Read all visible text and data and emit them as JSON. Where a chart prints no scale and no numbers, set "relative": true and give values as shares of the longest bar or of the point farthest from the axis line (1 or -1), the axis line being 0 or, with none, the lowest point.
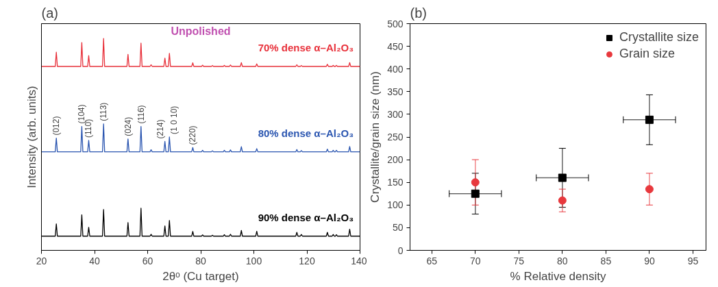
{
  "chart_data": [
    {
      "type": "line",
      "title": "(a)",
      "xlabel": "2θᵒ (Cu target)",
      "ylabel": "Intensity (arb. units)",
      "relative": true,
      "xlim": [
        20,
        140
      ],
      "xticks": [
        20,
        40,
        60,
        80,
        100,
        120,
        140
      ],
      "tick_labels": "x",
      "grid": false,
      "legend": false,
      "x": [
        20,
        25.2,
        25.6,
        26.0,
        34.8,
        35.2,
        35.6,
        37.4,
        37.8,
        38.2,
        43.0,
        43.4,
        43.8,
        52.2,
        52.6,
        53.0,
        57.1,
        57.5,
        57.9,
        60.9,
        61.3,
        61.7,
        66.1,
        66.5,
        66.9,
        67.8,
        68.2,
        68.6,
        76.6,
        77.0,
        77.4,
        80.3,
        80.7,
        81.1,
        84.0,
        84.4,
        84.8,
        88.5,
        88.9,
        89.3,
        90.8,
        91.2,
        91.6,
        94.9,
        95.3,
        95.7,
        100.7,
        101.1,
        101.5,
        115.8,
        116.2,
        116.6,
        117.5,
        117.9,
        118.3,
        127.3,
        127.7,
        128.1,
        129.5,
        129.9,
        130.3,
        130.7,
        131.1,
        131.5,
        135.7,
        136.1,
        136.5,
        140
      ],
      "series": [
        {
          "name": "70% dense α–Al₂O₃",
          "color": "#e8303a",
          "values": [
            0.868,
            0.868,
            0.935,
            0.868,
            0.868,
            0.981,
            0.868,
            0.868,
            0.919,
            0.868,
            0.868,
            1.0,
            0.868,
            0.868,
            0.925,
            0.868,
            0.868,
            0.978,
            0.868,
            0.868,
            0.876,
            0.868,
            0.868,
            0.907,
            0.868,
            0.868,
            0.93,
            0.868,
            0.868,
            0.885,
            0.868,
            0.868,
            0.874,
            0.868,
            0.868,
            0.872,
            0.868,
            0.868,
            0.873,
            0.868,
            0.868,
            0.875,
            0.868,
            0.868,
            0.886,
            0.868,
            0.868,
            0.88,
            0.868,
            0.868,
            0.876,
            0.868,
            0.868,
            0.872,
            0.868,
            0.868,
            0.878,
            0.868,
            0.868,
            0.873,
            0.868,
            0.868,
            0.873,
            0.868,
            0.868,
            0.886,
            0.868,
            0.868
          ]
        },
        {
          "name": "80% dense α–Al₂O₃",
          "color": "#2a55b0",
          "values": [
            0.465,
            0.465,
            0.53,
            0.465,
            0.465,
            0.585,
            0.465,
            0.465,
            0.519,
            0.465,
            0.465,
            0.597,
            0.465,
            0.465,
            0.526,
            0.465,
            0.465,
            0.585,
            0.465,
            0.465,
            0.475,
            0.465,
            0.465,
            0.514,
            0.465,
            0.465,
            0.535,
            0.465,
            0.465,
            0.485,
            0.465,
            0.465,
            0.472,
            0.465,
            0.465,
            0.47,
            0.465,
            0.465,
            0.472,
            0.465,
            0.465,
            0.474,
            0.465,
            0.465,
            0.489,
            0.465,
            0.465,
            0.48,
            0.465,
            0.465,
            0.476,
            0.465,
            0.465,
            0.471,
            0.465,
            0.465,
            0.478,
            0.465,
            0.465,
            0.472,
            0.465,
            0.465,
            0.472,
            0.465,
            0.465,
            0.49,
            0.465,
            0.465
          ]
        },
        {
          "name": "90% dense α–Al₂O₃",
          "color": "#000000",
          "values": [
            0.067,
            0.067,
            0.125,
            0.067,
            0.067,
            0.168,
            0.067,
            0.067,
            0.109,
            0.067,
            0.067,
            0.193,
            0.067,
            0.067,
            0.131,
            0.067,
            0.067,
            0.199,
            0.067,
            0.067,
            0.076,
            0.067,
            0.067,
            0.115,
            0.067,
            0.067,
            0.141,
            0.067,
            0.067,
            0.089,
            0.067,
            0.067,
            0.073,
            0.067,
            0.067,
            0.071,
            0.067,
            0.067,
            0.074,
            0.067,
            0.067,
            0.076,
            0.067,
            0.067,
            0.094,
            0.067,
            0.067,
            0.09,
            0.067,
            0.067,
            0.085,
            0.067,
            0.067,
            0.075,
            0.067,
            0.067,
            0.085,
            0.067,
            0.067,
            0.075,
            0.067,
            0.067,
            0.074,
            0.067,
            0.067,
            0.1,
            0.067,
            0.067
          ]
        }
      ],
      "annotations": [
        "Unpolished",
        {
          "text": "(012)",
          "x": 25.6,
          "y": 0.53
        },
        {
          "text": "(104)",
          "x": 35.2,
          "y": 0.585
        },
        {
          "text": "(110)",
          "x": 37.8,
          "y": 0.519
        },
        {
          "text": "(113)",
          "x": 43.4,
          "y": 0.597
        },
        {
          "text": "(024)",
          "x": 52.6,
          "y": 0.526
        },
        {
          "text": "(116)",
          "x": 57.5,
          "y": 0.585
        },
        {
          "text": "(214)",
          "x": 66.5,
          "y": 0.514
        },
        {
          "text": "(1 0 10)",
          "x": 68.2,
          "y": 0.535
        },
        {
          "text": "(220)",
          "x": 77.0,
          "y": 0.485
        }
      ]
    },
    {
      "type": "scatter",
      "title": "(b)",
      "xlabel": "% Relative density",
      "ylabel": "Crystallite/grain size (nm)",
      "x": [
        70,
        80,
        90
      ],
      "xlim": [
        62.5,
        96.5
      ],
      "xticks": [
        65,
        70,
        75,
        80,
        85,
        90,
        95
      ],
      "ylim": [
        0,
        500
      ],
      "yticks": [
        0,
        50,
        100,
        150,
        200,
        250,
        300,
        350,
        400,
        450,
        500
      ],
      "grid": false,
      "legend": "top right",
      "series": [
        {
          "name": "Crystallite size",
          "color": "#000000",
          "marker": "square",
          "values": [
            125,
            160,
            288
          ],
          "errors": [
            [
              80,
              170
            ],
            [
              95,
              225
            ],
            [
              233,
              343
            ]
          ],
          "xerrors": [
            3,
            3,
            3
          ]
        },
        {
          "name": "Grain size",
          "color": "#e8383d",
          "marker": "circle",
          "values": [
            150,
            110,
            135
          ],
          "errors": [
            [
              100,
              200
            ],
            [
              85,
              135
            ],
            [
              100,
              170
            ]
          ]
        }
      ]
    }
  ]
}
